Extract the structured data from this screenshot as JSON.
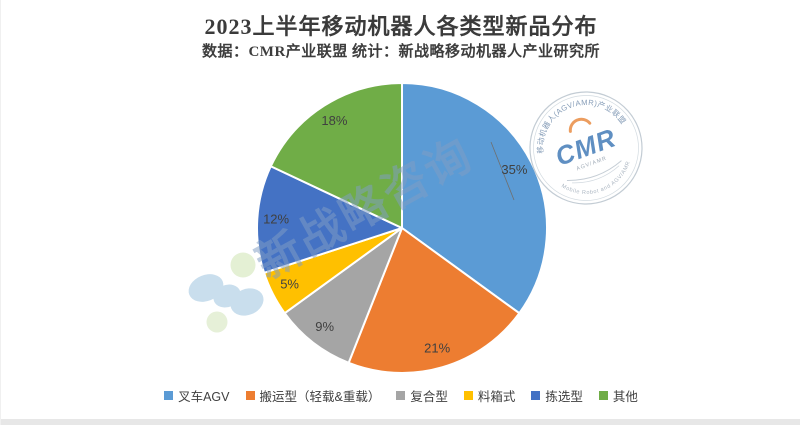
{
  "chart_data": {
    "type": "pie",
    "title": "2023上半年移动机器人各类型新品分布",
    "subtitle": "数据：CMR产业联盟 统计：新战略移动机器人产业研究所",
    "direction": "clockwise",
    "start_angle_deg": 0,
    "legend_position": "bottom",
    "series": [
      {
        "label": "叉车AGV",
        "value": 35,
        "pct_label": "35%",
        "color": "#5B9BD5"
      },
      {
        "label": "搬运型（轻载&重载）",
        "value": 21,
        "pct_label": "21%",
        "color": "#ED7D31"
      },
      {
        "label": "复合型",
        "value": 9,
        "pct_label": "9%",
        "color": "#A5A5A5"
      },
      {
        "label": "料箱式",
        "value": 5,
        "pct_label": "5%",
        "color": "#FFC000"
      },
      {
        "label": "拣选型",
        "value": 12,
        "pct_label": "12%",
        "color": "#4472C4"
      },
      {
        "label": "其他",
        "value": 18,
        "pct_label": "18%",
        "color": "#70AD47"
      }
    ],
    "label_color": "#404040"
  },
  "watermark": {
    "diagonal_text": "新战略咨询",
    "stamp": {
      "top_arc_text": "移动机器人(AGV/AMR)产业联盟",
      "center_text": "CMR",
      "sub_text": "AGV/AMR",
      "bottom_arc_text": "Mobile Robot and AGV/AMR"
    }
  }
}
